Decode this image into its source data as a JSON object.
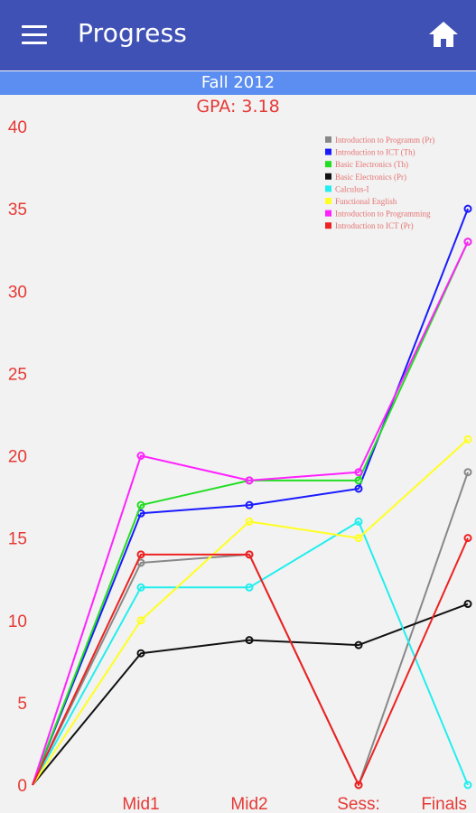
{
  "appbar": {
    "title": "Progress",
    "menu_icon": "menu-icon",
    "home_icon": "home-icon",
    "color": "#3f51b5"
  },
  "semester": {
    "label": "Fall 2012",
    "color": "#5b8ef0"
  },
  "gpa": {
    "label": "GPA: 3.18",
    "color": "#e53935"
  },
  "chart_data": {
    "type": "line",
    "x": [
      "",
      "Mid1",
      "Mid2",
      "Sess:",
      "Finals"
    ],
    "xlabel": "",
    "ylabel": "",
    "ylim": [
      0,
      40
    ],
    "yticks": [
      0,
      5,
      10,
      15,
      20,
      25,
      30,
      35,
      40
    ],
    "grid": false,
    "legend_position": "top-right",
    "axis_color": "#e53935",
    "series": [
      {
        "name": "Introduction to Programm (Pr)",
        "color": "#888888",
        "values": [
          0,
          13.5,
          14,
          0,
          19
        ]
      },
      {
        "name": "Introduction to ICT (Th)",
        "color": "#1a1aff",
        "values": [
          0,
          16.5,
          17,
          18,
          35
        ]
      },
      {
        "name": "Basic Electronics (Th)",
        "color": "#22dd22",
        "values": [
          0,
          17,
          18.5,
          18.5,
          33
        ]
      },
      {
        "name": "Basic Electronics (Pr)",
        "color": "#111111",
        "values": [
          0,
          8,
          8.8,
          8.5,
          11
        ]
      },
      {
        "name": "Calculus-I",
        "color": "#22eeee",
        "values": [
          0,
          12,
          12,
          16,
          0
        ]
      },
      {
        "name": "Functional English",
        "color": "#ffff22",
        "values": [
          0,
          10,
          16,
          15,
          21
        ]
      },
      {
        "name": "Introduction to Programming",
        "color": "#ff22ff",
        "values": [
          0,
          20,
          18.5,
          19,
          33
        ]
      },
      {
        "name": "Introduction to ICT (Pr)",
        "color": "#ee2222",
        "values": [
          0,
          14,
          14,
          0,
          15
        ]
      }
    ]
  }
}
